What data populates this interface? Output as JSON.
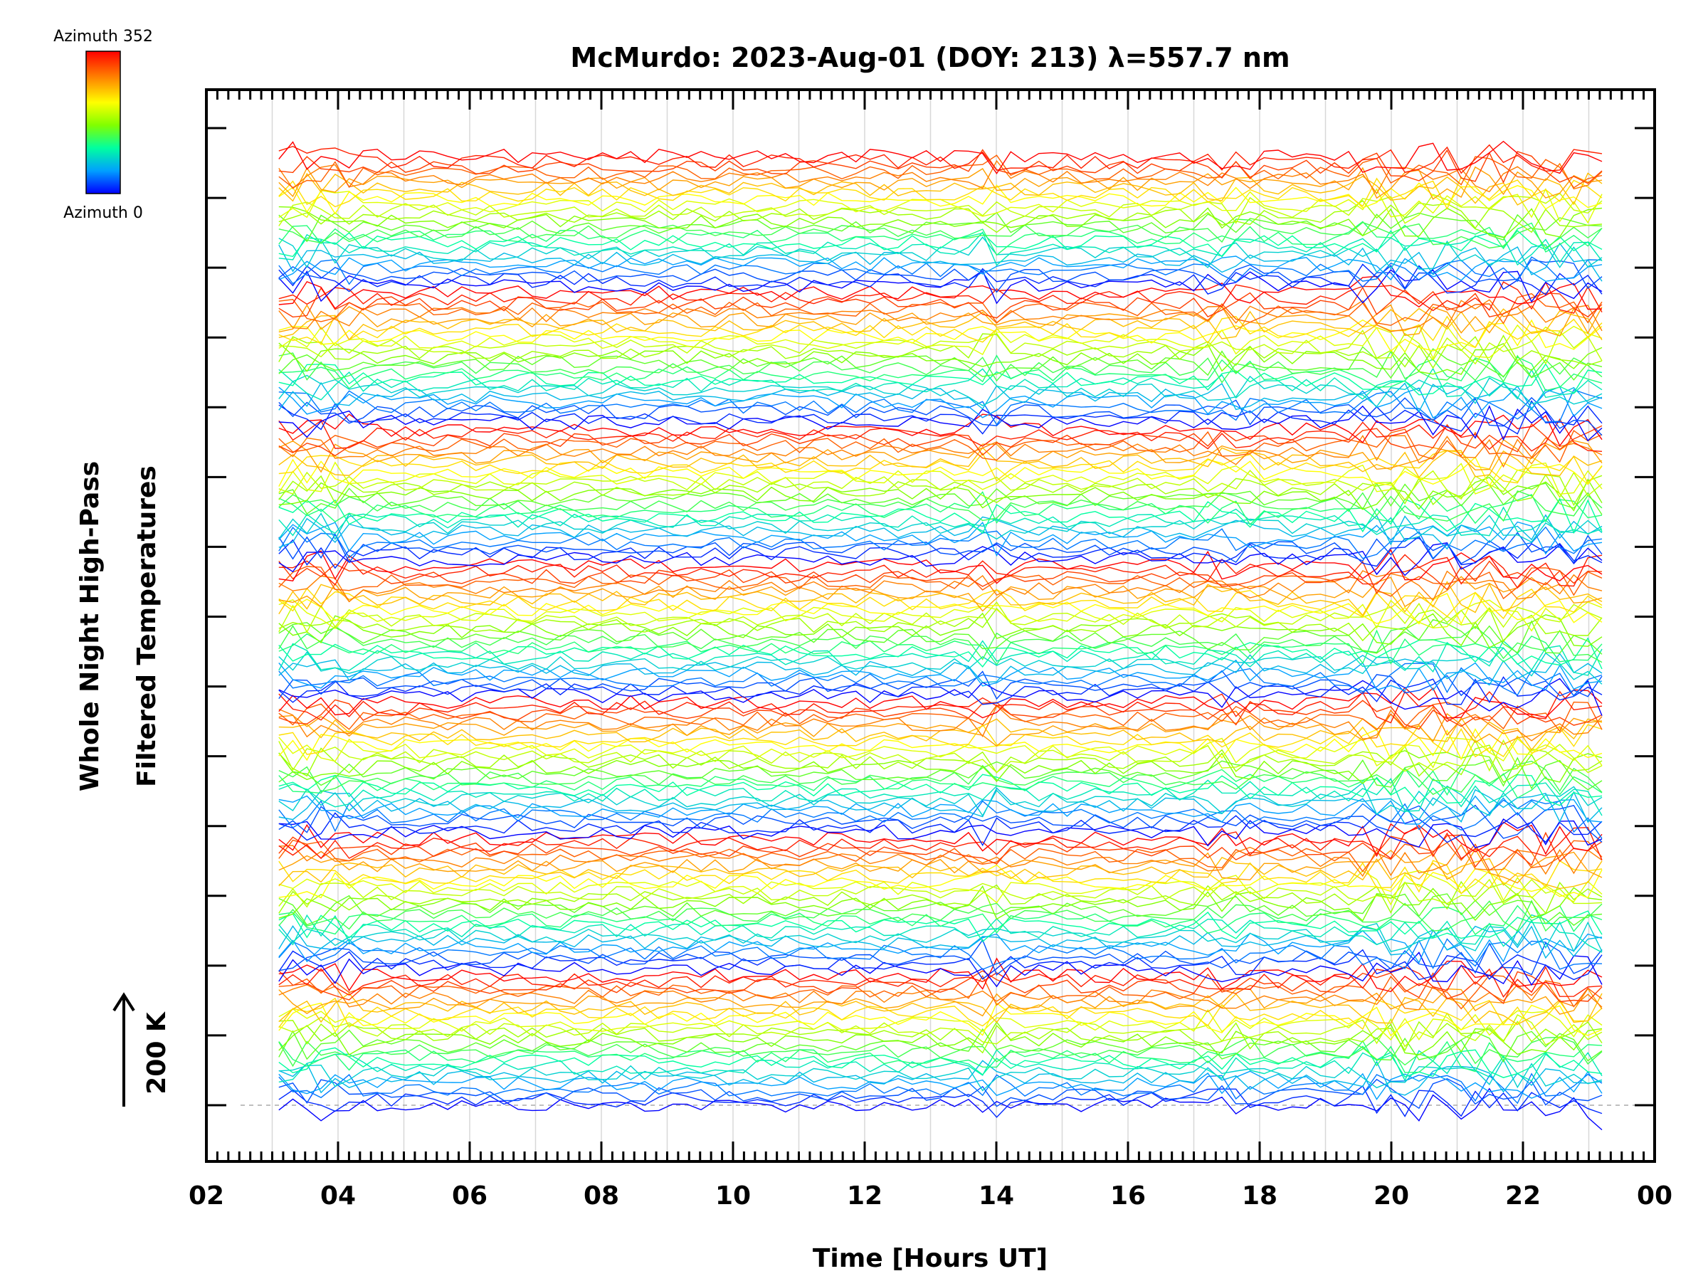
{
  "chart_data": {
    "type": "line",
    "title": "McMurdo: 2023-Aug-01 (DOY: 213) λ=557.7 nm",
    "xlabel": "Time [Hours UT]",
    "ylabel_line1": "Whole Night High-Pass",
    "ylabel_line2": "Filtered Temperatures",
    "x_tick_labels": [
      "02",
      "04",
      "06",
      "08",
      "10",
      "12",
      "14",
      "16",
      "18",
      "20",
      "22",
      "00"
    ],
    "x_ticks_hours": [
      2,
      4,
      6,
      8,
      10,
      12,
      14,
      16,
      18,
      20,
      22,
      24
    ],
    "xlim_hours": [
      2,
      24
    ],
    "scale_bar_label": "200 K",
    "colorbar": {
      "top_label": "Azimuth 352",
      "bottom_label": "Azimuth 0",
      "colors": [
        "#ff0000",
        "#ff8000",
        "#ffff00",
        "#80ff00",
        "#00ffa0",
        "#00a0ff",
        "#0000ff"
      ]
    },
    "num_groups": 7,
    "traces_per_group": 25,
    "time_start_hours": 3.1,
    "time_end_hours": 23.2,
    "grid": true,
    "series_note_source": "traces colored by azimuth 0–352"
  }
}
